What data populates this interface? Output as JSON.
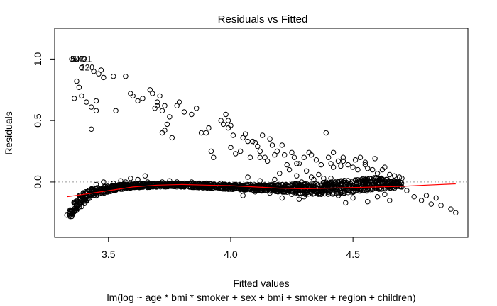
{
  "chart_data": {
    "type": "scatter",
    "title": "Residuals vs Fitted",
    "xlabel": "Fitted values",
    "subtitle": "lm(log ~ age * bmi * smoker + sex + bmi + smoker + region + children)",
    "ylabel": "Residuals",
    "xlim": [
      3.28,
      4.97
    ],
    "ylim": [
      -0.45,
      1.25
    ],
    "x_ticks": [
      3.5,
      4.0,
      4.5
    ],
    "x_tick_labels": [
      "3.5",
      "4.0",
      "4.5"
    ],
    "y_ticks": [
      0.0,
      0.5,
      1.0
    ],
    "y_tick_labels": [
      "0.0",
      "0.5",
      "1.0"
    ],
    "reference_line_y": 0,
    "annotations": [
      {
        "text": "547",
        "x": 3.35,
        "y": 1.0
      },
      {
        "text": "1421",
        "x": 3.36,
        "y": 1.0
      },
      {
        "text": "220",
        "x": 3.39,
        "y": 0.93
      }
    ],
    "series": [
      {
        "points": [
          [
            3.35,
            1.0
          ],
          [
            3.37,
            1.0
          ],
          [
            3.4,
            1.0
          ],
          [
            3.39,
            0.93
          ],
          [
            3.44,
            0.9
          ],
          [
            3.46,
            0.88
          ],
          [
            3.47,
            0.91
          ],
          [
            3.48,
            0.85
          ],
          [
            3.52,
            0.86
          ],
          [
            3.57,
            0.86
          ],
          [
            3.38,
            0.77
          ],
          [
            3.37,
            0.82
          ],
          [
            3.39,
            0.7
          ],
          [
            3.41,
            0.65
          ],
          [
            3.43,
            0.61
          ],
          [
            3.45,
            0.66
          ],
          [
            3.45,
            0.58
          ],
          [
            3.43,
            0.43
          ],
          [
            3.36,
            0.68
          ],
          [
            3.53,
            0.58
          ],
          [
            3.59,
            0.72
          ],
          [
            3.6,
            0.7
          ],
          [
            3.62,
            0.66
          ],
          [
            3.64,
            0.68
          ],
          [
            3.67,
            0.75
          ],
          [
            3.68,
            0.72
          ],
          [
            3.69,
            0.6
          ],
          [
            3.7,
            0.65
          ],
          [
            3.7,
            0.62
          ],
          [
            3.71,
            0.7
          ],
          [
            3.72,
            0.58
          ],
          [
            3.73,
            0.62
          ],
          [
            3.72,
            0.4
          ],
          [
            3.73,
            0.42
          ],
          [
            3.74,
            0.47
          ],
          [
            3.75,
            0.53
          ],
          [
            3.76,
            0.36
          ],
          [
            3.78,
            0.62
          ],
          [
            3.79,
            0.65
          ],
          [
            3.81,
            0.57
          ],
          [
            3.84,
            0.55
          ],
          [
            3.86,
            0.6
          ],
          [
            3.88,
            0.4
          ],
          [
            3.9,
            0.4
          ],
          [
            3.91,
            0.44
          ],
          [
            3.92,
            0.25
          ],
          [
            3.93,
            0.2
          ],
          [
            3.96,
            0.5
          ],
          [
            3.97,
            0.47
          ],
          [
            3.98,
            0.55
          ],
          [
            3.99,
            0.5
          ],
          [
            4.0,
            0.46
          ],
          [
            3.99,
            0.44
          ],
          [
            4.01,
            0.38
          ],
          [
            4.0,
            0.28
          ],
          [
            4.02,
            0.23
          ],
          [
            4.04,
            0.25
          ],
          [
            4.05,
            0.36
          ],
          [
            4.06,
            0.39
          ],
          [
            4.07,
            0.33
          ],
          [
            4.08,
            0.2
          ],
          [
            4.09,
            0.33
          ],
          [
            4.1,
            0.32
          ],
          [
            4.11,
            0.29
          ],
          [
            4.12,
            0.25
          ],
          [
            4.13,
            0.38
          ],
          [
            4.12,
            0.2
          ],
          [
            4.14,
            0.2
          ],
          [
            4.15,
            0.17
          ],
          [
            4.16,
            0.35
          ],
          [
            4.17,
            0.3
          ],
          [
            4.18,
            0.22
          ],
          [
            4.19,
            0.25
          ],
          [
            4.21,
            0.3
          ],
          [
            4.22,
            0.22
          ],
          [
            4.23,
            0.14
          ],
          [
            4.25,
            0.24
          ],
          [
            4.26,
            0.2
          ],
          [
            4.27,
            0.15
          ],
          [
            4.28,
            0.15
          ],
          [
            4.3,
            0.2
          ],
          [
            4.32,
            0.24
          ],
          [
            4.33,
            0.22
          ],
          [
            4.35,
            0.18
          ],
          [
            4.37,
            0.14
          ],
          [
            4.39,
            0.4
          ],
          [
            4.4,
            0.2
          ],
          [
            4.41,
            0.15
          ],
          [
            4.42,
            0.12
          ],
          [
            4.44,
            0.17
          ],
          [
            4.45,
            0.13
          ],
          [
            4.46,
            0.2
          ],
          [
            4.48,
            0.14
          ],
          [
            4.5,
            0.12
          ],
          [
            4.52,
            0.1
          ],
          [
            4.53,
            0.2
          ],
          [
            4.55,
            0.16
          ],
          [
            4.56,
            0.11
          ],
          [
            4.58,
            0.1
          ],
          [
            4.6,
            0.07
          ],
          [
            4.62,
            0.1
          ],
          [
            4.63,
            0.12
          ],
          [
            4.65,
            0.06
          ],
          [
            4.67,
            0.05
          ],
          [
            4.7,
            0.03
          ],
          [
            4.42,
            0.24
          ],
          [
            4.46,
            0.17
          ],
          [
            4.51,
            0.18
          ],
          [
            4.55,
            0.14
          ],
          [
            4.59,
            0.19
          ],
          [
            4.64,
            0.02
          ],
          [
            4.69,
            0.04
          ],
          [
            4.46,
            0.0
          ],
          [
            4.53,
            -0.05
          ],
          [
            4.63,
            -0.1
          ],
          [
            4.65,
            -0.15
          ],
          [
            4.67,
            -0.05
          ],
          [
            4.72,
            -0.07
          ],
          [
            4.75,
            -0.12
          ],
          [
            4.78,
            -0.15
          ],
          [
            4.8,
            -0.11
          ],
          [
            4.82,
            -0.18
          ],
          [
            4.84,
            -0.13
          ],
          [
            4.86,
            -0.19
          ],
          [
            4.9,
            -0.22
          ],
          [
            4.92,
            -0.25
          ],
          [
            4.6,
            -0.12
          ],
          [
            4.56,
            -0.16
          ],
          [
            4.5,
            -0.13
          ],
          [
            4.44,
            -0.11
          ],
          [
            4.37,
            -0.1
          ],
          [
            4.3,
            -0.12
          ],
          [
            4.25,
            -0.1
          ],
          [
            4.21,
            -0.13
          ],
          [
            4.1,
            -0.08
          ],
          [
            4.05,
            -0.11
          ],
          [
            4.16,
            -0.09
          ],
          [
            4.28,
            -0.14
          ],
          [
            4.47,
            -0.17
          ],
          [
            3.33,
            -0.27
          ],
          [
            3.34,
            -0.26
          ],
          [
            3.35,
            -0.28
          ],
          [
            3.36,
            -0.24
          ],
          [
            3.37,
            -0.22
          ],
          [
            3.36,
            -0.2
          ],
          [
            3.38,
            -0.17
          ],
          [
            3.39,
            -0.2
          ],
          [
            3.4,
            -0.14
          ],
          [
            3.41,
            -0.12
          ],
          [
            3.42,
            -0.1
          ],
          [
            3.43,
            -0.11
          ],
          [
            3.44,
            -0.07
          ],
          [
            3.46,
            -0.08
          ],
          [
            3.47,
            -0.06
          ],
          [
            3.49,
            -0.05
          ],
          [
            3.5,
            -0.04
          ],
          [
            3.52,
            -0.04
          ],
          [
            3.54,
            -0.03
          ],
          [
            3.56,
            -0.02
          ],
          [
            3.58,
            -0.03
          ],
          [
            3.6,
            -0.01
          ],
          [
            3.63,
            -0.01
          ],
          [
            3.66,
            0.0
          ],
          [
            3.69,
            -0.01
          ],
          [
            3.72,
            0.0
          ],
          [
            3.75,
            0.01
          ],
          [
            3.78,
            0.0
          ],
          [
            3.81,
            -0.01
          ],
          [
            3.84,
            0.0
          ],
          [
            3.87,
            -0.01
          ],
          [
            3.9,
            -0.01
          ],
          [
            3.93,
            -0.02
          ],
          [
            3.96,
            -0.01
          ],
          [
            3.99,
            -0.03
          ],
          [
            4.02,
            -0.02
          ],
          [
            4.05,
            -0.03
          ],
          [
            4.08,
            -0.04
          ],
          [
            4.11,
            -0.04
          ],
          [
            4.14,
            -0.05
          ],
          [
            4.17,
            -0.06
          ],
          [
            4.2,
            -0.06
          ],
          [
            4.23,
            -0.05
          ],
          [
            4.26,
            -0.04
          ],
          [
            4.3,
            -0.05
          ],
          [
            4.35,
            -0.05
          ],
          [
            4.4,
            -0.06
          ],
          [
            4.45,
            -0.05
          ],
          [
            4.5,
            -0.04
          ],
          [
            4.55,
            -0.03
          ],
          [
            4.6,
            -0.02
          ],
          [
            4.65,
            -0.03
          ],
          [
            4.7,
            -0.04
          ],
          [
            4.2,
            0.07
          ],
          [
            4.24,
            0.1
          ],
          [
            4.27,
            0.05
          ],
          [
            4.31,
            0.09
          ],
          [
            4.33,
            0.04
          ],
          [
            4.36,
            0.06
          ],
          [
            4.38,
            0.03
          ],
          [
            4.29,
            0.0
          ],
          [
            4.34,
            0.02
          ],
          [
            4.41,
            0.03
          ],
          [
            4.18,
            0.02
          ],
          [
            4.12,
            0.01
          ],
          [
            4.07,
            0.04
          ],
          [
            3.65,
            0.05
          ],
          [
            3.62,
            0.02
          ],
          [
            3.59,
            0.03
          ],
          [
            3.57,
            0.0
          ],
          [
            3.55,
            0.01
          ],
          [
            3.52,
            -0.01
          ],
          [
            3.48,
            0.0
          ],
          [
            3.45,
            -0.02
          ]
        ]
      }
    ],
    "dense_band": [
      [
        3.34,
        -0.29,
        -0.24
      ],
      [
        3.36,
        -0.26,
        -0.16
      ],
      [
        3.38,
        -0.22,
        -0.11
      ],
      [
        3.4,
        -0.18,
        -0.08
      ],
      [
        3.42,
        -0.14,
        -0.06
      ],
      [
        3.44,
        -0.12,
        -0.05
      ],
      [
        3.47,
        -0.1,
        -0.04
      ],
      [
        3.5,
        -0.08,
        -0.03
      ],
      [
        3.55,
        -0.06,
        -0.02
      ],
      [
        3.6,
        -0.05,
        -0.01
      ],
      [
        3.7,
        -0.04,
        -0.01
      ],
      [
        3.8,
        -0.04,
        -0.01
      ],
      [
        3.9,
        -0.05,
        -0.01
      ],
      [
        4.0,
        -0.06,
        -0.02
      ],
      [
        4.1,
        -0.07,
        -0.02
      ],
      [
        4.2,
        -0.08,
        -0.02
      ],
      [
        4.3,
        -0.1,
        -0.01
      ],
      [
        4.4,
        -0.1,
        0.0
      ],
      [
        4.5,
        -0.09,
        0.02
      ],
      [
        4.6,
        -0.06,
        0.04
      ],
      [
        4.7,
        -0.05,
        0.0
      ]
    ],
    "smooth_line": [
      [
        3.33,
        -0.12
      ],
      [
        3.4,
        -0.1
      ],
      [
        3.5,
        -0.07
      ],
      [
        3.6,
        -0.04
      ],
      [
        3.7,
        -0.025
      ],
      [
        3.8,
        -0.02
      ],
      [
        3.9,
        -0.025
      ],
      [
        4.0,
        -0.03
      ],
      [
        4.1,
        -0.04
      ],
      [
        4.2,
        -0.05
      ],
      [
        4.3,
        -0.055
      ],
      [
        4.4,
        -0.05
      ],
      [
        4.5,
        -0.045
      ],
      [
        4.6,
        -0.04
      ],
      [
        4.7,
        -0.035
      ],
      [
        4.8,
        -0.025
      ],
      [
        4.92,
        -0.015
      ]
    ],
    "colors": {
      "points": "#000000",
      "smooth": "#ff0000",
      "reference": "#999999"
    }
  }
}
